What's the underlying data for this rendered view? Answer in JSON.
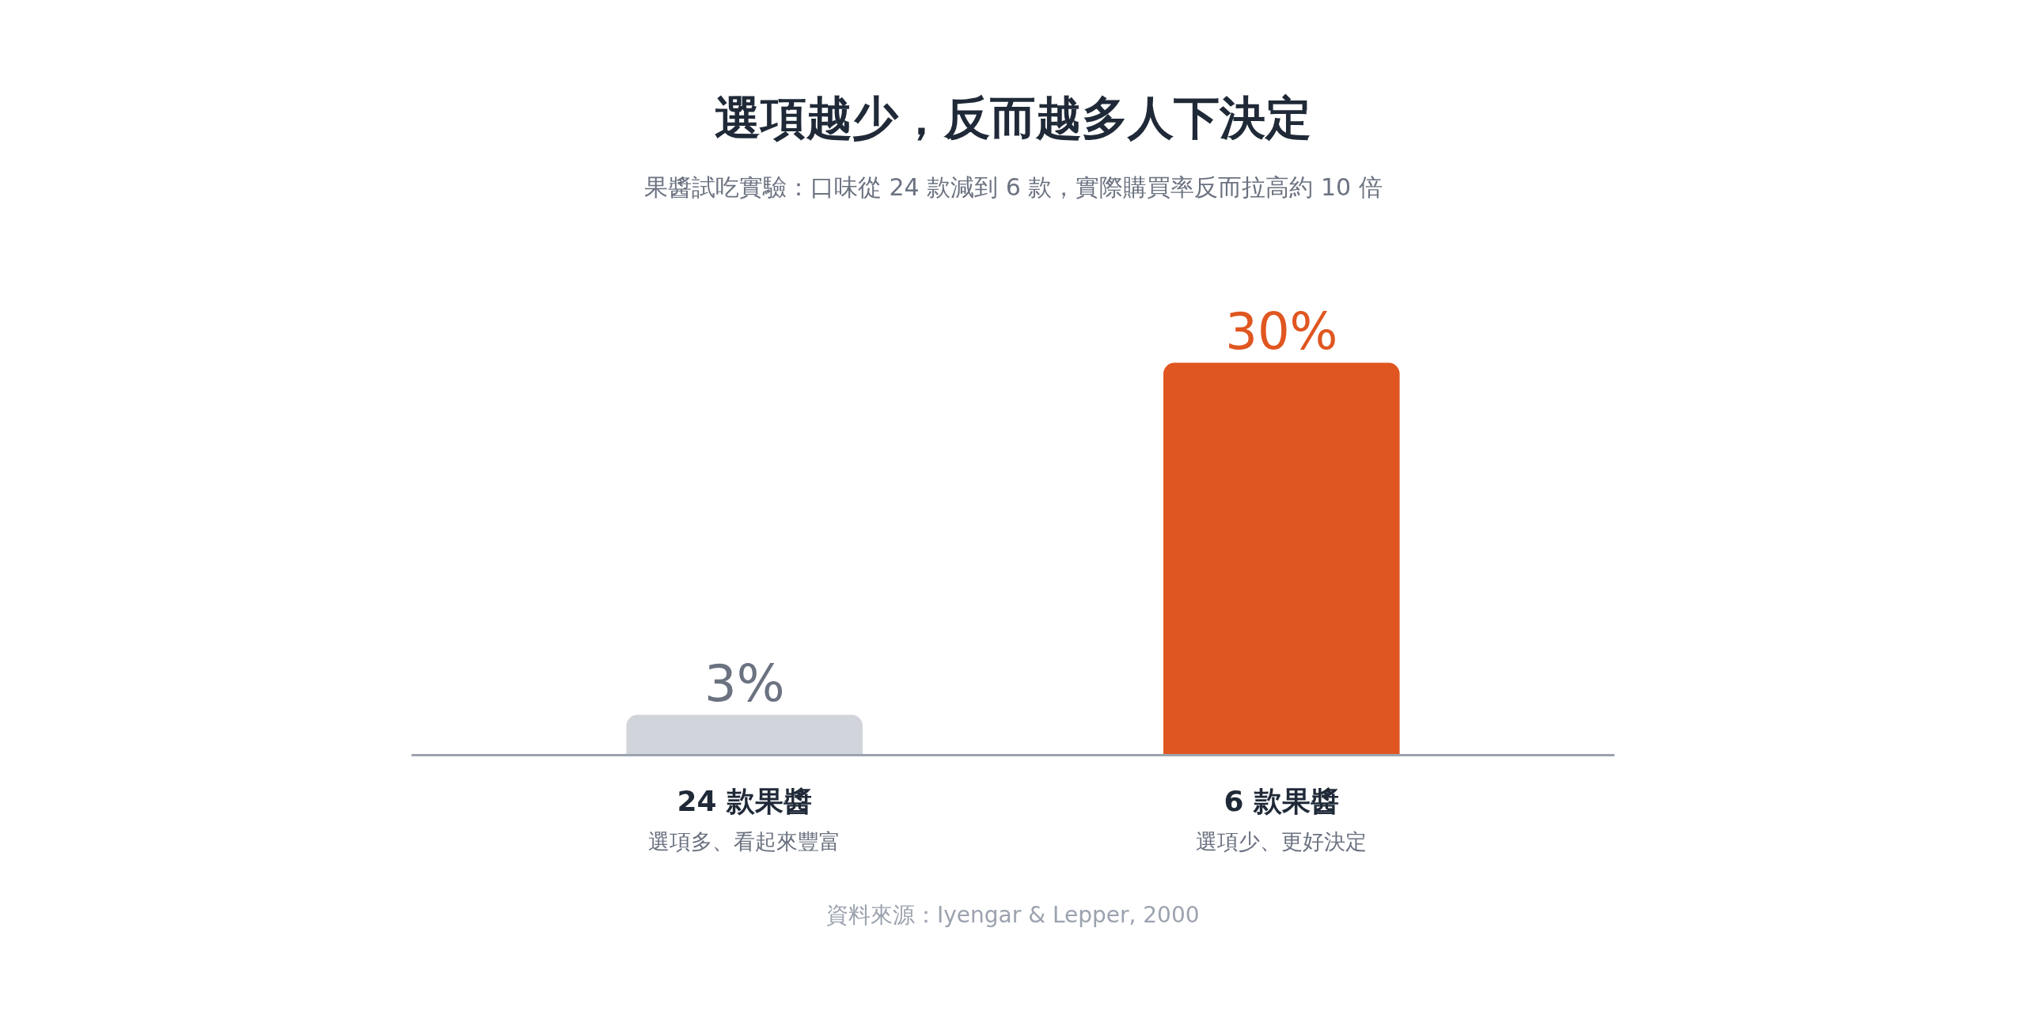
{
  "chart_data": {
    "type": "bar",
    "title": "選項越少，反而越多人下決定",
    "subtitle": "果醬試吃實驗：口味從 24 款減到 6 款，實際購買率反而拉高約 10 倍",
    "categories": [
      "24 款果醬",
      "6 款果醬"
    ],
    "values": [
      3,
      30
    ],
    "colors": [
      "#d1d5db",
      "#e05620"
    ],
    "value_labels": [
      "3%",
      "30%"
    ],
    "annotations": [
      "選項多、看起來豐富",
      "選項少、更好決定",
      "資料來源：Iyengar & Lepper, 2000"
    ],
    "legend": false
  }
}
